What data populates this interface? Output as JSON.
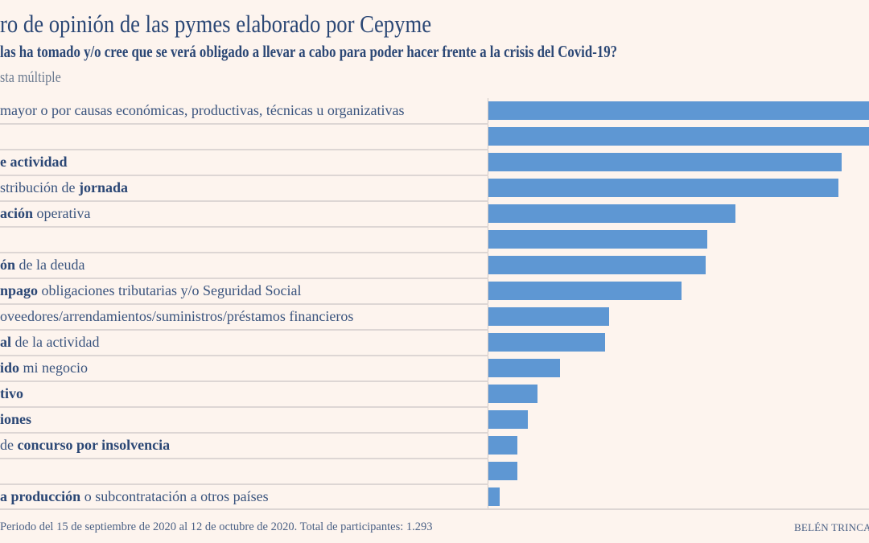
{
  "title": "ro de opinión de las pymes elaborado por Cepyme",
  "subtitle": "las ha tomado y/o cree que se verá obligado a llevar a cabo para poder hacer frente a la crisis del Covid-19?",
  "note": "sta múltiple",
  "footnote": "Periodo del 15 de septiembre de 2020 al 12 de octubre de 2020. Total de participantes: 1.293",
  "credit": "BELÉN TRINCA",
  "colors": {
    "bar": "#5e97d3",
    "text": "#2b4775",
    "background": "#fdf4ee"
  },
  "chart_data": {
    "type": "bar",
    "orientation": "horizontal",
    "note": "no axis values printed; values are relative bar lengths, first two bars cropped at right edge",
    "xlim": [
      0,
      473
    ],
    "categories": [
      [
        {
          "t": "mayor o por causas económicas, productivas, técnicas u organizativas",
          "b": false
        }
      ],
      [],
      [
        {
          "t": "e actividad",
          "b": true
        }
      ],
      [
        {
          "t": "stribución de ",
          "b": false
        },
        {
          "t": "jornada",
          "b": true
        }
      ],
      [
        {
          "t": "ación",
          "b": true
        },
        {
          "t": " operativa",
          "b": false
        }
      ],
      [],
      [
        {
          "t": "ón",
          "b": true
        },
        {
          "t": " de la deuda",
          "b": false
        }
      ],
      [
        {
          "t": "npago",
          "b": true
        },
        {
          "t": " obligaciones tributarias y/o Seguridad Social",
          "b": false
        }
      ],
      [
        {
          "t": "oveedores/arrendamientos/suministros/préstamos financieros",
          "b": false
        }
      ],
      [
        {
          "t": "al",
          "b": true
        },
        {
          "t": " de la actividad",
          "b": false
        }
      ],
      [
        {
          "t": "ido",
          "b": true
        },
        {
          "t": " mi negocio",
          "b": false
        }
      ],
      [
        {
          "t": "tivo",
          "b": true
        }
      ],
      [
        {
          "t": "iones",
          "b": true
        }
      ],
      [
        {
          "t": "de ",
          "b": false
        },
        {
          "t": "concurso por insolvencia",
          "b": true
        }
      ],
      [],
      [
        {
          "t": "a producción",
          "b": true
        },
        {
          "t": " o subcontratación a otros países",
          "b": false
        }
      ]
    ],
    "values": [
      480,
      480,
      439,
      435,
      307,
      272,
      270,
      240,
      150,
      145,
      89,
      61,
      49,
      36,
      36,
      14
    ]
  }
}
